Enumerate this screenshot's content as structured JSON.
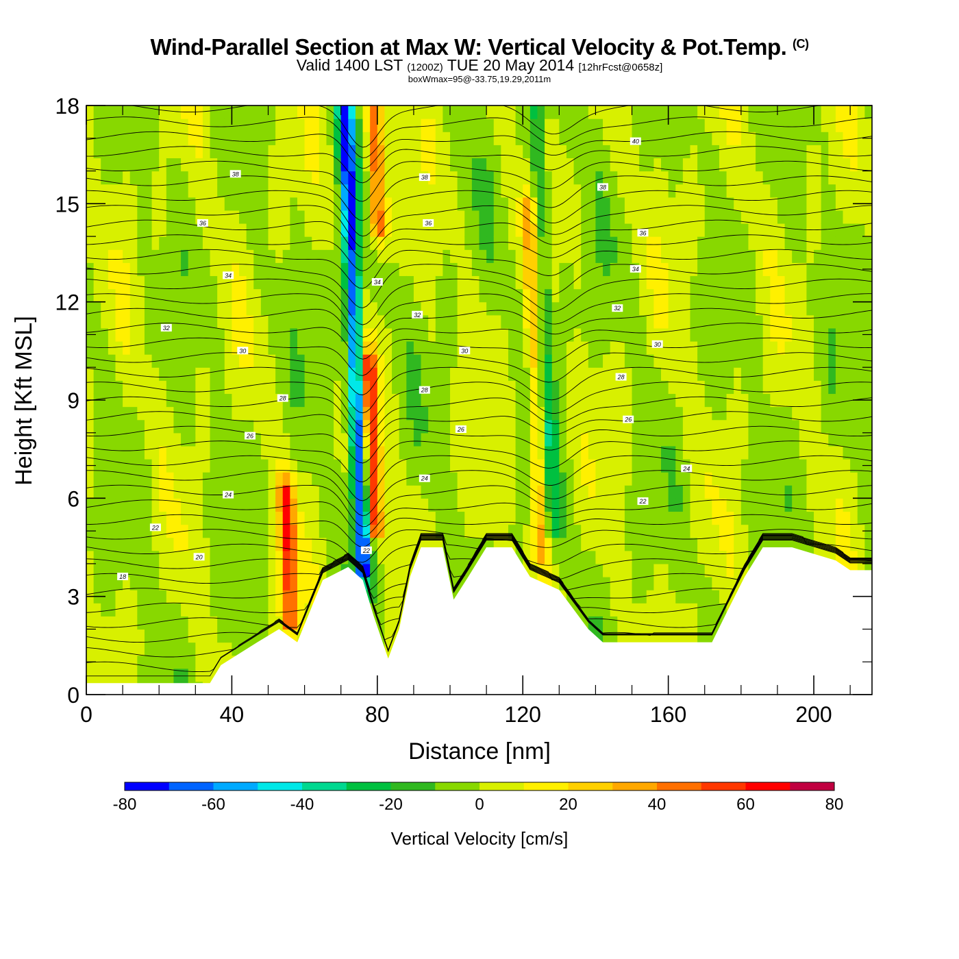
{
  "title": {
    "main": "Wind-Parallel Section at Max W: Vertical Velocity & Pot.Temp.",
    "copyright": "(C)",
    "valid_prefix": "Valid 1400 LST",
    "valid_utc": "(1200Z)",
    "valid_date": "TUE 20 May 2014",
    "forecast": "[12hrFcst@0658z]",
    "box": "boxWmax=95@-33.75,19.29,2011m"
  },
  "chart_data": {
    "type": "heatmap",
    "title": "Wind-Parallel Section at Max W: Vertical Velocity & Pot.Temp.",
    "xlabel": "Distance [nm]",
    "ylabel": "Height [Kft MSL]",
    "xlim": [
      0,
      216
    ],
    "ylim": [
      0,
      18
    ],
    "x_ticks": [
      "0",
      "40",
      "80",
      "120",
      "160",
      "200"
    ],
    "y_ticks": [
      "0",
      "3",
      "6",
      "9",
      "12",
      "15",
      "18"
    ],
    "colorbar": {
      "label": "Vertical Velocity [cm/s]",
      "levels": [
        -80,
        -70,
        -60,
        -50,
        -40,
        -30,
        -20,
        -10,
        0,
        10,
        20,
        30,
        40,
        50,
        60,
        70,
        80
      ],
      "tick_labels": [
        "-80",
        "-60",
        "-40",
        "-20",
        "0",
        "20",
        "40",
        "60",
        "80"
      ],
      "colors": [
        "#0000ff",
        "#0064ff",
        "#00aaff",
        "#00e8e8",
        "#00d890",
        "#00c040",
        "#30b820",
        "#88d800",
        "#d8f000",
        "#fff000",
        "#ffd000",
        "#ffa800",
        "#ff7000",
        "#ff3800",
        "#ff0000",
        "#c00040"
      ]
    },
    "vertical_velocity_features": [
      {
        "name": "downdraft core",
        "x": 76,
        "ybottom": 4.5,
        "ytop": 18,
        "w": -75
      },
      {
        "name": "updraft core",
        "x": 79,
        "ybottom": 6,
        "ytop": 9.5,
        "w": 65
      },
      {
        "name": "updraft upper",
        "x": 80,
        "ybottom": 15,
        "ytop": 18,
        "w": 55
      },
      {
        "name": "updraft low",
        "x": 56,
        "ybottom": 3,
        "ytop": 5.5,
        "w": 55
      },
      {
        "name": "sink band",
        "x": 128,
        "ybottom": 6,
        "ytop": 18,
        "w": -25
      },
      {
        "name": "rise band",
        "x": 125,
        "ybottom": 5,
        "ytop": 14,
        "w": 30
      }
    ],
    "terrain_top_kft": [
      [
        0,
        0.35
      ],
      [
        34,
        0.35
      ],
      [
        37,
        0.9
      ],
      [
        47,
        1.6
      ],
      [
        53,
        2
      ],
      [
        58,
        1.6
      ],
      [
        65,
        3.5
      ],
      [
        72,
        3.9
      ],
      [
        76,
        3.5
      ],
      [
        79,
        2.4
      ],
      [
        83,
        1.1
      ],
      [
        86,
        2
      ],
      [
        89,
        3.6
      ],
      [
        92,
        4.5
      ],
      [
        98,
        4.5
      ],
      [
        101,
        2.9
      ],
      [
        105,
        3.6
      ],
      [
        110,
        4.5
      ],
      [
        117,
        4.5
      ],
      [
        122,
        3.6
      ],
      [
        130,
        3.2
      ],
      [
        138,
        2
      ],
      [
        142,
        1.6
      ],
      [
        172,
        1.6
      ],
      [
        176,
        2.5
      ],
      [
        181,
        3.6
      ],
      [
        186,
        4.5
      ],
      [
        194,
        4.5
      ],
      [
        206,
        4.1
      ],
      [
        210,
        3.8
      ],
      [
        216,
        3.8
      ]
    ],
    "theta_labels": [
      {
        "text": "18",
        "x": 10,
        "y": 3.6
      },
      {
        "text": "20",
        "x": 31,
        "y": 4.2
      },
      {
        "text": "22",
        "x": 19,
        "y": 5.1
      },
      {
        "text": "24",
        "x": 39,
        "y": 6.1
      },
      {
        "text": "26",
        "x": 45,
        "y": 7.9
      },
      {
        "text": "28",
        "x": 54,
        "y": 9.05
      },
      {
        "text": "30",
        "x": 43,
        "y": 10.5
      },
      {
        "text": "32",
        "x": 22,
        "y": 11.2
      },
      {
        "text": "34",
        "x": 39,
        "y": 12.8
      },
      {
        "text": "36",
        "x": 32,
        "y": 14.4
      },
      {
        "text": "38",
        "x": 41,
        "y": 15.9
      },
      {
        "text": "22",
        "x": 77,
        "y": 4.4
      },
      {
        "text": "24",
        "x": 93,
        "y": 6.6
      },
      {
        "text": "26",
        "x": 103,
        "y": 8.1
      },
      {
        "text": "28",
        "x": 93,
        "y": 9.3
      },
      {
        "text": "30",
        "x": 104,
        "y": 10.5
      },
      {
        "text": "32",
        "x": 91,
        "y": 11.6
      },
      {
        "text": "34",
        "x": 80,
        "y": 12.6
      },
      {
        "text": "36",
        "x": 94,
        "y": 14.4
      },
      {
        "text": "38",
        "x": 93,
        "y": 15.8
      },
      {
        "text": "22",
        "x": 153,
        "y": 5.9
      },
      {
        "text": "24",
        "x": 165,
        "y": 6.9
      },
      {
        "text": "26",
        "x": 149,
        "y": 8.4
      },
      {
        "text": "28",
        "x": 147,
        "y": 9.7
      },
      {
        "text": "30",
        "x": 157,
        "y": 10.7
      },
      {
        "text": "32",
        "x": 146,
        "y": 11.8
      },
      {
        "text": "34",
        "x": 151,
        "y": 13.0
      },
      {
        "text": "36",
        "x": 153,
        "y": 14.1
      },
      {
        "text": "38",
        "x": 142,
        "y": 15.5
      },
      {
        "text": "40",
        "x": 151,
        "y": 16.9
      }
    ]
  }
}
